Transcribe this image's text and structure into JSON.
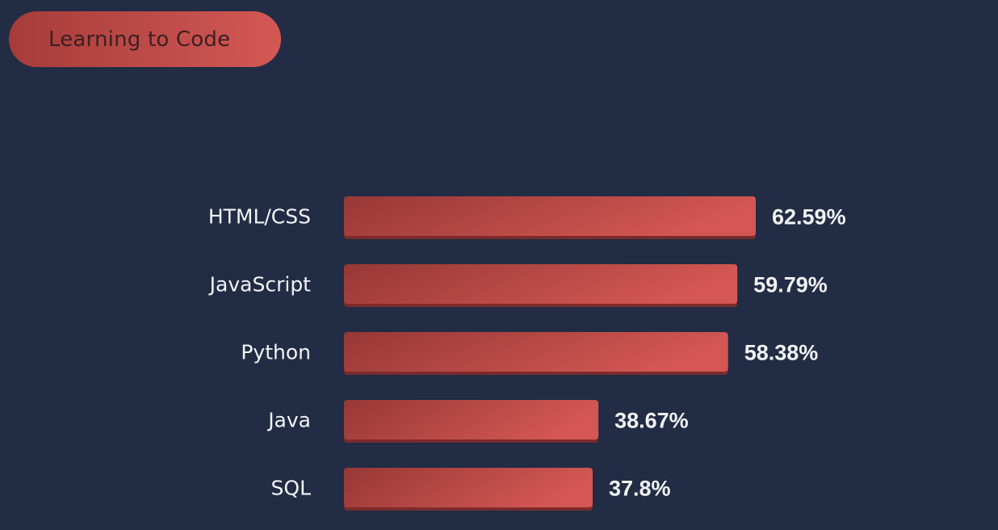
{
  "header": {
    "title_button": "Learning to Code"
  },
  "colors": {
    "background": "#222c44",
    "bar_start": "#963836",
    "bar_end": "#d45753",
    "bar_shadow": "#7a2b2c",
    "text": "#f2f3f6",
    "pill_text": "#3c2022"
  },
  "chart_data": {
    "type": "bar",
    "orientation": "horizontal",
    "categories": [
      "HTML/CSS",
      "JavaScript",
      "Python",
      "Java",
      "SQL"
    ],
    "values": [
      62.59,
      59.79,
      58.38,
      38.67,
      37.8
    ],
    "value_labels": [
      "62.59%",
      "59.79%",
      "58.38%",
      "38.67%",
      "37.8%"
    ],
    "title": "",
    "xlabel": "",
    "ylabel": "",
    "grid": false,
    "legend": "none"
  }
}
